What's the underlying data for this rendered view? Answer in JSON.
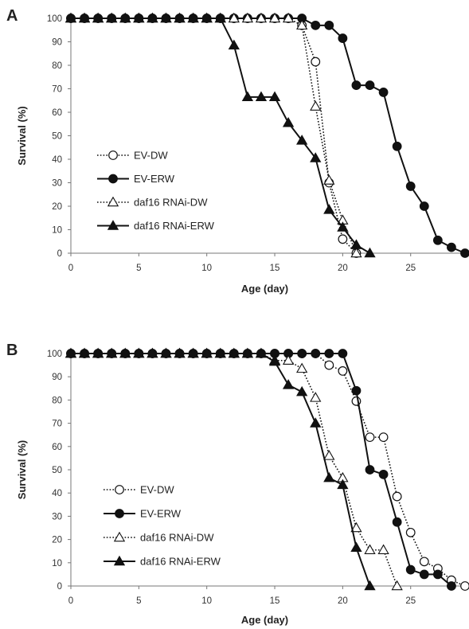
{
  "chart_data": [
    {
      "type": "line",
      "panel": "A",
      "xlabel": "Age (day)",
      "ylabel": "Survival (%)",
      "xlim": [
        0,
        29
      ],
      "ylim": [
        0,
        100
      ],
      "xticks": [
        0,
        5,
        10,
        15,
        20,
        25
      ],
      "yticks": [
        0,
        10,
        20,
        30,
        40,
        50,
        60,
        70,
        80,
        90,
        100
      ],
      "grid": false,
      "legend_position": "left",
      "series": [
        {
          "name": "EV-DW",
          "marker": "open-circle",
          "line": "dotted",
          "points": [
            [
              0,
              100
            ],
            [
              1,
              100
            ],
            [
              2,
              100
            ],
            [
              3,
              100
            ],
            [
              4,
              100
            ],
            [
              5,
              100
            ],
            [
              6,
              100
            ],
            [
              7,
              100
            ],
            [
              8,
              100
            ],
            [
              9,
              100
            ],
            [
              10,
              100
            ],
            [
              11,
              100
            ],
            [
              12,
              100
            ],
            [
              13,
              100
            ],
            [
              14,
              100
            ],
            [
              15,
              100
            ],
            [
              16,
              100
            ],
            [
              17,
              97
            ],
            [
              18,
              81.5
            ],
            [
              19,
              30
            ],
            [
              20,
              6
            ],
            [
              21,
              0
            ]
          ]
        },
        {
          "name": "EV-ERW",
          "marker": "filled-circle",
          "line": "solid",
          "points": [
            [
              0,
              100
            ],
            [
              1,
              100
            ],
            [
              2,
              100
            ],
            [
              3,
              100
            ],
            [
              4,
              100
            ],
            [
              5,
              100
            ],
            [
              6,
              100
            ],
            [
              7,
              100
            ],
            [
              8,
              100
            ],
            [
              9,
              100
            ],
            [
              10,
              100
            ],
            [
              11,
              100
            ],
            [
              12,
              100
            ],
            [
              13,
              100
            ],
            [
              14,
              100
            ],
            [
              15,
              100
            ],
            [
              16,
              100
            ],
            [
              17,
              100
            ],
            [
              18,
              97
            ],
            [
              19,
              97
            ],
            [
              20,
              91.5
            ],
            [
              21,
              71.5
            ],
            [
              22,
              71.5
            ],
            [
              23,
              68.5
            ],
            [
              24,
              45.5
            ],
            [
              25,
              28.5
            ],
            [
              26,
              20
            ],
            [
              27,
              5.5
            ],
            [
              28,
              2.5
            ],
            [
              29,
              0
            ]
          ]
        },
        {
          "name": "daf16 RNAi-DW",
          "marker": "open-triangle",
          "line": "dotted",
          "points": [
            [
              0,
              100
            ],
            [
              1,
              100
            ],
            [
              2,
              100
            ],
            [
              3,
              100
            ],
            [
              4,
              100
            ],
            [
              5,
              100
            ],
            [
              6,
              100
            ],
            [
              7,
              100
            ],
            [
              8,
              100
            ],
            [
              9,
              100
            ],
            [
              10,
              100
            ],
            [
              11,
              100
            ],
            [
              12,
              100
            ],
            [
              13,
              100
            ],
            [
              14,
              100
            ],
            [
              15,
              100
            ],
            [
              16,
              100
            ],
            [
              17,
              97
            ],
            [
              18,
              62.5
            ],
            [
              19,
              31
            ],
            [
              20,
              14
            ],
            [
              21,
              0
            ]
          ]
        },
        {
          "name": "daf16 RNAi-ERW",
          "marker": "filled-triangle",
          "line": "solid",
          "points": [
            [
              0,
              100
            ],
            [
              1,
              100
            ],
            [
              2,
              100
            ],
            [
              3,
              100
            ],
            [
              4,
              100
            ],
            [
              5,
              100
            ],
            [
              6,
              100
            ],
            [
              7,
              100
            ],
            [
              8,
              100
            ],
            [
              9,
              100
            ],
            [
              10,
              100
            ],
            [
              11,
              100
            ],
            [
              12,
              88.5
            ],
            [
              13,
              66.5
            ],
            [
              14,
              66.5
            ],
            [
              15,
              66.5
            ],
            [
              16,
              55.5
            ],
            [
              17,
              48
            ],
            [
              18,
              40.5
            ],
            [
              19,
              18.5
            ],
            [
              20,
              11
            ],
            [
              21,
              3.5
            ],
            [
              22,
              0
            ]
          ]
        }
      ]
    },
    {
      "type": "line",
      "panel": "B",
      "xlabel": "Age (day)",
      "ylabel": "Survival (%)",
      "xlim": [
        0,
        29
      ],
      "ylim": [
        0,
        100
      ],
      "xticks": [
        0,
        5,
        10,
        15,
        20,
        25
      ],
      "yticks": [
        0,
        10,
        20,
        30,
        40,
        50,
        60,
        70,
        80,
        90,
        100
      ],
      "grid": false,
      "legend_position": "left",
      "series": [
        {
          "name": "EV-DW",
          "marker": "open-circle",
          "line": "dotted",
          "points": [
            [
              0,
              100
            ],
            [
              1,
              100
            ],
            [
              2,
              100
            ],
            [
              3,
              100
            ],
            [
              4,
              100
            ],
            [
              5,
              100
            ],
            [
              6,
              100
            ],
            [
              7,
              100
            ],
            [
              8,
              100
            ],
            [
              9,
              100
            ],
            [
              10,
              100
            ],
            [
              11,
              100
            ],
            [
              12,
              100
            ],
            [
              13,
              100
            ],
            [
              14,
              100
            ],
            [
              15,
              100
            ],
            [
              16,
              100
            ],
            [
              17,
              100
            ],
            [
              18,
              100
            ],
            [
              19,
              95
            ],
            [
              20,
              92.5
            ],
            [
              21,
              79.5
            ],
            [
              22,
              64
            ],
            [
              23,
              64
            ],
            [
              24,
              38.5
            ],
            [
              25,
              23
            ],
            [
              26,
              10.5
            ],
            [
              27,
              7.5
            ],
            [
              28,
              2.5
            ],
            [
              29,
              0
            ]
          ]
        },
        {
          "name": "EV-ERW",
          "marker": "filled-circle",
          "line": "solid",
          "points": [
            [
              0,
              100
            ],
            [
              1,
              100
            ],
            [
              2,
              100
            ],
            [
              3,
              100
            ],
            [
              4,
              100
            ],
            [
              5,
              100
            ],
            [
              6,
              100
            ],
            [
              7,
              100
            ],
            [
              8,
              100
            ],
            [
              9,
              100
            ],
            [
              10,
              100
            ],
            [
              11,
              100
            ],
            [
              12,
              100
            ],
            [
              13,
              100
            ],
            [
              14,
              100
            ],
            [
              15,
              100
            ],
            [
              16,
              100
            ],
            [
              17,
              100
            ],
            [
              18,
              100
            ],
            [
              19,
              100
            ],
            [
              20,
              100
            ],
            [
              21,
              84
            ],
            [
              22,
              50
            ],
            [
              23,
              48
            ],
            [
              24,
              27.5
            ],
            [
              25,
              7
            ],
            [
              26,
              5
            ],
            [
              27,
              5
            ],
            [
              28,
              0
            ]
          ]
        },
        {
          "name": "daf16 RNAi-DW",
          "marker": "open-triangle",
          "line": "dotted",
          "points": [
            [
              0,
              100
            ],
            [
              1,
              100
            ],
            [
              2,
              100
            ],
            [
              3,
              100
            ],
            [
              4,
              100
            ],
            [
              5,
              100
            ],
            [
              6,
              100
            ],
            [
              7,
              100
            ],
            [
              8,
              100
            ],
            [
              9,
              100
            ],
            [
              10,
              100
            ],
            [
              11,
              100
            ],
            [
              12,
              100
            ],
            [
              13,
              100
            ],
            [
              14,
              100
            ],
            [
              15,
              97
            ],
            [
              16,
              97
            ],
            [
              17,
              93.5
            ],
            [
              18,
              81
            ],
            [
              19,
              56
            ],
            [
              20,
              46.5
            ],
            [
              21,
              25
            ],
            [
              22,
              15.5
            ],
            [
              23,
              15.5
            ],
            [
              24,
              0
            ]
          ]
        },
        {
          "name": "daf16 RNAi-ERW",
          "marker": "filled-triangle",
          "line": "solid",
          "points": [
            [
              0,
              100
            ],
            [
              1,
              100
            ],
            [
              2,
              100
            ],
            [
              3,
              100
            ],
            [
              4,
              100
            ],
            [
              5,
              100
            ],
            [
              6,
              100
            ],
            [
              7,
              100
            ],
            [
              8,
              100
            ],
            [
              9,
              100
            ],
            [
              10,
              100
            ],
            [
              11,
              100
            ],
            [
              12,
              100
            ],
            [
              13,
              100
            ],
            [
              14,
              100
            ],
            [
              15,
              96.5
            ],
            [
              16,
              86.5
            ],
            [
              17,
              83.5
            ],
            [
              18,
              70
            ],
            [
              19,
              46.5
            ],
            [
              20,
              43.5
            ],
            [
              21,
              16.5
            ],
            [
              22,
              0
            ]
          ]
        }
      ]
    }
  ]
}
